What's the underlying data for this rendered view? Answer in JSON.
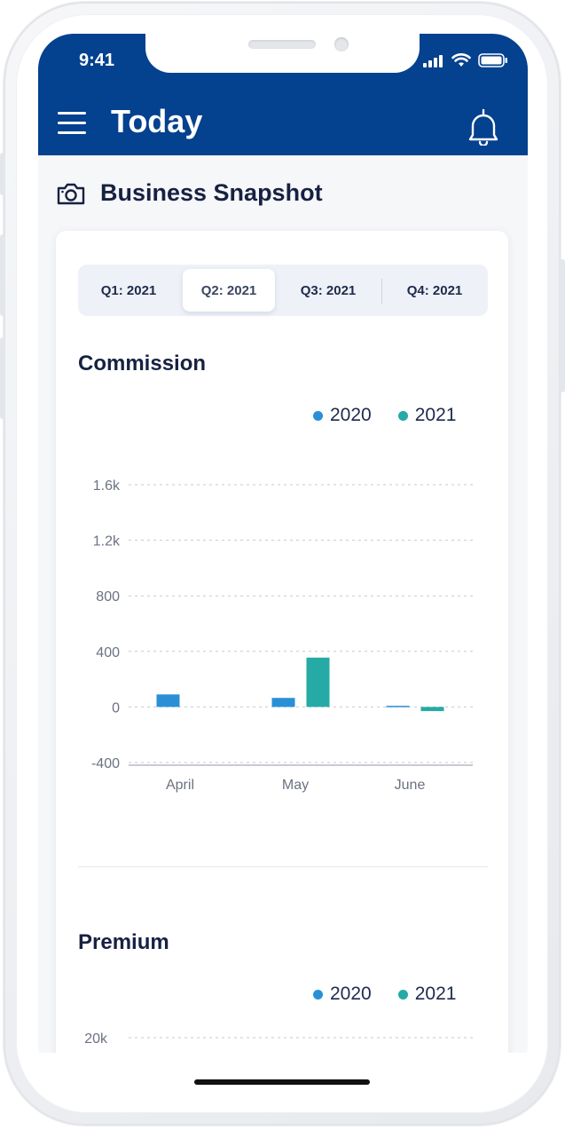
{
  "status_bar": {
    "time": "9:41"
  },
  "header": {
    "title": "Today",
    "menu_icon": "hamburger-menu-icon",
    "bell_icon": "bell-icon"
  },
  "section": {
    "title": "Business Snapshot",
    "icon": "camera-icon"
  },
  "quarter_tabs": [
    {
      "label": "Q1: 2021",
      "active": false
    },
    {
      "label": "Q2: 2021",
      "active": true
    },
    {
      "label": "Q3: 2021",
      "active": false
    },
    {
      "label": "Q4: 2021",
      "active": false
    }
  ],
  "colors": {
    "series_2020": "#2b8fd6",
    "series_2021": "#26aaa5",
    "header_bg": "#04418e"
  },
  "commission": {
    "title": "Commission",
    "legend": [
      {
        "label": "2020",
        "color": "#2b8fd6"
      },
      {
        "label": "2021",
        "color": "#26aaa5"
      }
    ]
  },
  "premium": {
    "title": "Premium",
    "legend": [
      {
        "label": "2020",
        "color": "#2b8fd6"
      },
      {
        "label": "2021",
        "color": "#26aaa5"
      }
    ]
  },
  "chart_data": [
    {
      "type": "bar",
      "title": "Commission",
      "categories": [
        "April",
        "May",
        "June"
      ],
      "series": [
        {
          "name": "2020",
          "values": [
            90,
            65,
            8
          ]
        },
        {
          "name": "2021",
          "values": [
            null,
            355,
            -30
          ]
        }
      ],
      "ytick_labels": [
        "-400",
        "0",
        "400",
        "800",
        "1.2k",
        "1.6k"
      ],
      "ylim": [
        -400,
        1600
      ],
      "grid": true,
      "legend_position": "top-right"
    },
    {
      "type": "bar",
      "title": "Premium",
      "ytick_labels": [
        "20k"
      ],
      "grid": true,
      "legend_position": "top-right"
    }
  ]
}
